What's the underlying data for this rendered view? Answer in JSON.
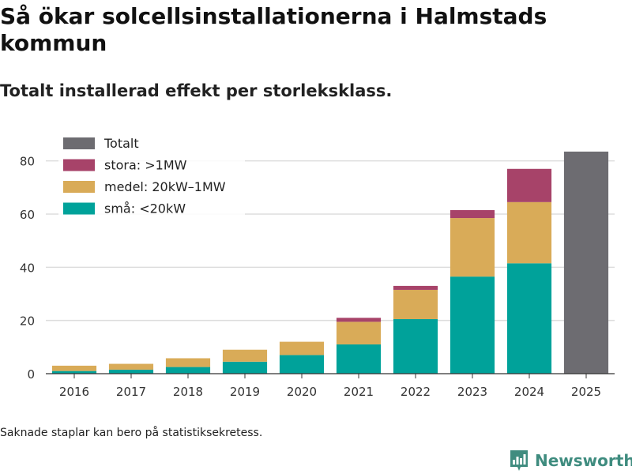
{
  "title": "Så ökar solcellsinstallationerna i Halmstads kommun",
  "subtitle": "Totalt installerad effekt per storleksklass.",
  "footnote": "Saknade staplar kan bero på statistiksekretess.",
  "brand": "Newsworthy",
  "colors": {
    "sma": "#00a29a",
    "medel": "#d9ab58",
    "stora": "#a74369",
    "totalt": "#6d6c71",
    "grid": "#dddddd",
    "axis": "#333333"
  },
  "chart_data": {
    "type": "bar",
    "stacked": true,
    "title": "Så ökar solcellsinstallationerna i Halmstads kommun",
    "subtitle": "Totalt installerad effekt per storleksklass.",
    "xlabel": "",
    "ylabel": "",
    "ylim": [
      0,
      90
    ],
    "yticks": [
      0,
      20,
      40,
      60,
      80
    ],
    "grid": true,
    "legend_position": "top-left",
    "categories": [
      "2016",
      "2017",
      "2018",
      "2019",
      "2020",
      "2021",
      "2022",
      "2023",
      "2024",
      "2025"
    ],
    "series": [
      {
        "key": "sma",
        "name": "små: <20kW",
        "values": [
          1.0,
          1.5,
          2.5,
          4.5,
          7.0,
          11.0,
          20.5,
          36.5,
          41.5,
          null
        ]
      },
      {
        "key": "medel",
        "name": "medel: 20kW–1MW",
        "values": [
          2.0,
          2.2,
          3.3,
          4.5,
          5.0,
          8.5,
          11.0,
          22.0,
          23.0,
          null
        ]
      },
      {
        "key": "stora",
        "name": "stora: >1MW",
        "values": [
          null,
          null,
          null,
          null,
          null,
          1.5,
          1.5,
          3.0,
          12.5,
          null
        ]
      },
      {
        "key": "totalt",
        "name": "Totalt",
        "values": [
          null,
          null,
          null,
          null,
          null,
          null,
          null,
          null,
          null,
          83.5
        ]
      }
    ],
    "legend_order": [
      "totalt",
      "stora",
      "medel",
      "sma"
    ]
  }
}
